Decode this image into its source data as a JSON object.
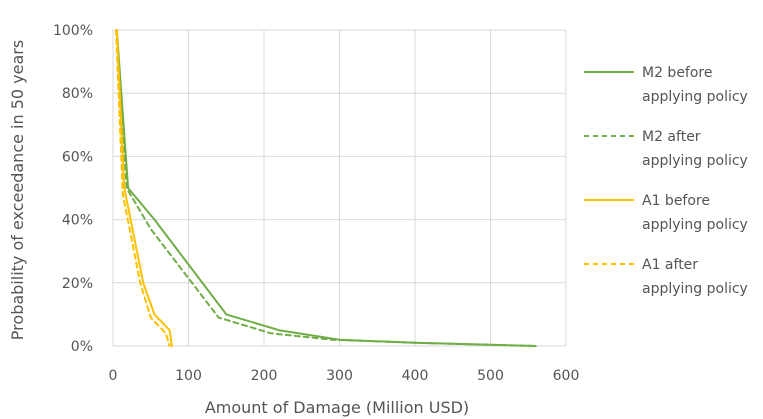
{
  "chart_data": {
    "type": "line",
    "xlabel": "Amount of Damage (Million USD)",
    "ylabel": "Probability of exceedance in 50 years",
    "xlim": [
      0,
      600
    ],
    "ylim": [
      0,
      100
    ],
    "x_ticks": [
      "0",
      "100",
      "200",
      "300",
      "400",
      "500",
      "600"
    ],
    "y_ticks": [
      "0%",
      "20%",
      "40%",
      "60%",
      "80%",
      "100%"
    ],
    "grid": true,
    "legend_position": "right",
    "series": [
      {
        "name": "M2 before applying policy",
        "legend_lines": [
          "M2 before",
          "applying policy"
        ],
        "color": "#70ad47",
        "dash": false,
        "points": [
          [
            5,
            100
          ],
          [
            20,
            50
          ],
          [
            55,
            40
          ],
          [
            150,
            10
          ],
          [
            220,
            5
          ],
          [
            300,
            2
          ],
          [
            400,
            1
          ],
          [
            560,
            0
          ]
        ]
      },
      {
        "name": "M2 after applying policy",
        "legend_lines": [
          "M2 after",
          "applying policy"
        ],
        "color": "#70ad47",
        "dash": true,
        "points": [
          [
            5,
            100
          ],
          [
            18,
            50
          ],
          [
            50,
            37
          ],
          [
            140,
            9
          ],
          [
            210,
            4
          ],
          [
            290,
            2
          ],
          [
            400,
            1
          ],
          [
            560,
            0
          ]
        ]
      },
      {
        "name": "A1 before applying policy",
        "legend_lines": [
          "A1 before",
          "applying policy"
        ],
        "color": "#ffc000",
        "dash": false,
        "points": [
          [
            5,
            100
          ],
          [
            15,
            50
          ],
          [
            40,
            20
          ],
          [
            55,
            10
          ],
          [
            75,
            5
          ],
          [
            78,
            0
          ]
        ]
      },
      {
        "name": "A1 after applying policy",
        "legend_lines": [
          "A1 after",
          "applying policy"
        ],
        "color": "#ffc000",
        "dash": true,
        "points": [
          [
            4,
            100
          ],
          [
            13,
            48
          ],
          [
            36,
            20
          ],
          [
            50,
            9
          ],
          [
            70,
            4
          ],
          [
            75,
            0
          ]
        ]
      }
    ]
  }
}
